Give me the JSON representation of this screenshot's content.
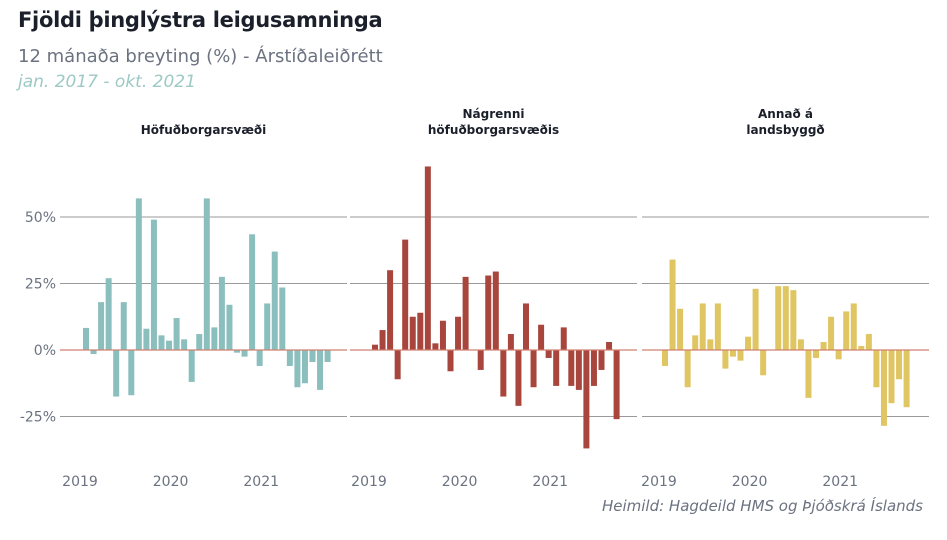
{
  "header": {
    "title": "Fjöldi þinglýstra leigusamninga",
    "subtitle": "12 mánaða breyting (%) - Árstíðaleiðrétt",
    "date_range": "jan. 2017 - okt. 2021"
  },
  "footer": {
    "source": "Heimild: Hagdeild HMS og Þjóðskrá Íslands"
  },
  "colors": {
    "panel1": "#8bbfbd",
    "panel2": "#a8463d",
    "panel3": "#e0c563",
    "zero_line": "#d08070",
    "grid": "#9a9a9a",
    "text_dark": "#1a1f2a",
    "text_muted": "#6b7280",
    "date_accent": "#9dc9c6"
  },
  "chart_data": {
    "type": "bar",
    "ylim": [
      -35,
      70
    ],
    "y_ticks": [
      50,
      25,
      0,
      -25
    ],
    "y_tick_labels": [
      "50%",
      "25%",
      "0%",
      "-25%"
    ],
    "x_ticks": [
      {
        "label": "2019",
        "index": 0
      },
      {
        "label": "2020",
        "index": 12
      },
      {
        "label": "2021",
        "index": 24
      }
    ],
    "grid": true,
    "panels": [
      {
        "title_lines": [
          "Höfuðborgarsvæði"
        ],
        "values": [
          8.3,
          -1.5,
          18,
          27,
          -17.5,
          18,
          -17,
          57,
          8,
          49,
          5.5,
          3.5,
          12,
          4,
          -12,
          6,
          57,
          8.5,
          27.5,
          17,
          -1,
          -2.5,
          43.5,
          -6,
          17.5,
          37,
          23.5,
          -6,
          -14,
          -12.5,
          -4.5,
          -15,
          -4.5
        ]
      },
      {
        "title_lines": [
          "Nágrenni",
          "höfuðborgarsvæðis"
        ],
        "values": [
          2,
          7.5,
          30,
          -11,
          41.5,
          12.5,
          14,
          69,
          2.5,
          11,
          -8,
          12.5,
          27.5,
          0,
          -7.5,
          28,
          29.5,
          -17.5,
          6,
          -21,
          17.5,
          -14,
          9.5,
          -3,
          -13.5,
          8.5,
          -13.5,
          -15,
          -37,
          -13.5,
          -7.5,
          3,
          -26
        ]
      },
      {
        "title_lines": [
          "Annað á",
          "landsbyggð"
        ],
        "values": [
          -6,
          34,
          15.5,
          -14,
          5.5,
          17.5,
          4,
          17.5,
          -7,
          -2.5,
          -4,
          5,
          23,
          -9.5,
          0,
          24,
          24,
          22.5,
          4,
          -18,
          -3,
          3,
          12.5,
          -3.5,
          14.5,
          17.5,
          1.5,
          6,
          -14,
          -28.5,
          -20,
          -11,
          -21.5
        ]
      }
    ]
  }
}
